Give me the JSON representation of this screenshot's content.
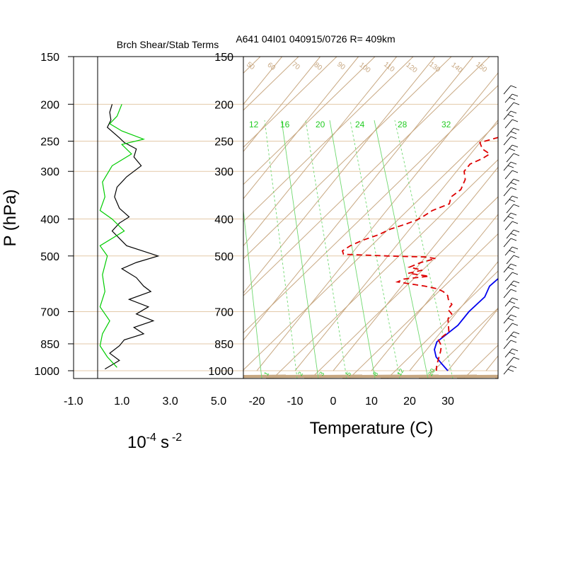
{
  "chart_data": [
    {
      "type": "line",
      "title": "Brch Shear/Stab Terms",
      "xlabel": "10",
      "xlabel_exponent": "-4",
      "xlabel_unit": "s",
      "xlabel_unit_exponent": "-2",
      "ylabel": "P (hPa)",
      "xlim": [
        -1.0,
        5.0
      ],
      "x_ticks": [
        "-1.0",
        "1.0",
        "3.0",
        "5.0"
      ],
      "y_scale": "log",
      "ylim": [
        1000,
        150
      ],
      "y_ticks": [
        "150",
        "200",
        "250",
        "300",
        "400",
        "500",
        "700",
        "850",
        "1000"
      ],
      "grid": "horizontal at pressure levels",
      "series": [
        {
          "color": "#000000",
          "points": [
            [
              0.6,
              200
            ],
            [
              0.5,
              210
            ],
            [
              0.55,
              220
            ],
            [
              0.4,
              230
            ],
            [
              0.9,
              245
            ],
            [
              1.1,
              252
            ],
            [
              1.6,
              262
            ],
            [
              1.5,
              275
            ],
            [
              1.8,
              290
            ],
            [
              1.2,
              310
            ],
            [
              0.8,
              330
            ],
            [
              0.7,
              350
            ],
            [
              0.9,
              375
            ],
            [
              1.3,
              395
            ],
            [
              0.9,
              410
            ],
            [
              0.6,
              430
            ],
            [
              1.2,
              470
            ],
            [
              2.5,
              500
            ],
            [
              1.6,
              520
            ],
            [
              1.0,
              540
            ],
            [
              1.6,
              570
            ],
            [
              1.9,
              600
            ],
            [
              2.2,
              620
            ],
            [
              1.3,
              650
            ],
            [
              2.1,
              680
            ],
            [
              1.6,
              710
            ],
            [
              2.3,
              740
            ],
            [
              1.5,
              770
            ],
            [
              1.9,
              800
            ],
            [
              1.1,
              830
            ],
            [
              0.9,
              860
            ],
            [
              0.5,
              900
            ],
            [
              0.9,
              940
            ],
            [
              0.3,
              990
            ]
          ]
        },
        {
          "color": "#00cc00",
          "points": [
            [
              1.0,
              200
            ],
            [
              0.8,
              215
            ],
            [
              0.5,
              225
            ],
            [
              1.0,
              235
            ],
            [
              1.9,
              247
            ],
            [
              1.0,
              255
            ],
            [
              1.4,
              270
            ],
            [
              0.6,
              290
            ],
            [
              0.2,
              320
            ],
            [
              0.3,
              350
            ],
            [
              0.1,
              380
            ],
            [
              0.6,
              400
            ],
            [
              1.1,
              430
            ],
            [
              0.1,
              470
            ],
            [
              0.4,
              500
            ],
            [
              0.2,
              560
            ],
            [
              0.3,
              620
            ],
            [
              0.1,
              680
            ],
            [
              0.5,
              740
            ],
            [
              0.2,
              800
            ],
            [
              0.1,
              860
            ],
            [
              0.4,
              920
            ],
            [
              0.8,
              980
            ]
          ]
        }
      ]
    },
    {
      "type": "line",
      "title": "A641 04I01 040915/0726 R= 409km",
      "xlabel": "Temperature (C)",
      "x_ticks": [
        "-20",
        "-10",
        "0",
        "10",
        "20",
        "30"
      ],
      "xlim": [
        -23,
        42
      ],
      "y_scale": "log",
      "ylim": [
        1000,
        150
      ],
      "y_ticks": [
        "150",
        "200",
        "250",
        "300",
        "400",
        "500",
        "700",
        "850",
        "1000"
      ],
      "skew": "skew-T log-P diagram",
      "background": {
        "isotherm_color": "#c8a882",
        "mixing_ratio_color": "#2ecc2e",
        "isotherm_labels": [
          "50",
          "60",
          "70",
          "80",
          "90",
          "100",
          "110",
          "120",
          "130",
          "140",
          "150"
        ],
        "mixing_ratio_top_labels": [
          "12",
          "16",
          "20",
          "24",
          "28",
          "32"
        ],
        "mixing_ratio_bottom_labels": [
          "1",
          "2",
          "3",
          "5",
          "8",
          "12",
          "20"
        ]
      },
      "series": [
        {
          "name": "temperature",
          "color": "#0000ee",
          "style": "solid",
          "points": [
            [
              0,
              195
            ],
            [
              3,
              215
            ],
            [
              5,
              235
            ],
            [
              7,
              255
            ],
            [
              8,
              275
            ],
            [
              9,
              295
            ],
            [
              12,
              320
            ],
            [
              15,
              350
            ],
            [
              16,
              380
            ],
            [
              18,
              410
            ],
            [
              21,
              440
            ],
            [
              22,
              470
            ],
            [
              21,
              500
            ],
            [
              23,
              520
            ],
            [
              24,
              560
            ],
            [
              23,
              600
            ],
            [
              24,
              640
            ],
            [
              23,
              700
            ],
            [
              23,
              760
            ],
            [
              22,
              800
            ],
            [
              21,
              840
            ],
            [
              22,
              880
            ],
            [
              24,
              920
            ],
            [
              27,
              960
            ],
            [
              30,
              1000
            ]
          ]
        },
        {
          "name": "dewpoint",
          "color": "#dd0000",
          "style": "dashed",
          "points": [
            [
              -6,
              215
            ],
            [
              -3,
              225
            ],
            [
              -4,
              240
            ],
            [
              -10,
              252
            ],
            [
              -8,
              262
            ],
            [
              -5,
              270
            ],
            [
              -6,
              278
            ],
            [
              -8,
              287
            ],
            [
              -8,
              300
            ],
            [
              -6,
              315
            ],
            [
              -5,
              335
            ],
            [
              -6,
              350
            ],
            [
              -5,
              365
            ],
            [
              -8,
              380
            ],
            [
              -9,
              392
            ],
            [
              -10,
              402
            ],
            [
              -12,
              412
            ],
            [
              -15,
              425
            ],
            [
              -17,
              440
            ],
            [
              -20,
              455
            ],
            [
              -22,
              470
            ],
            [
              -23,
              485
            ],
            [
              -22,
              495
            ],
            [
              -10,
              500
            ],
            [
              0,
              503
            ],
            [
              3,
              508
            ],
            [
              0,
              520
            ],
            [
              -2,
              535
            ],
            [
              2,
              545
            ],
            [
              -1,
              555
            ],
            [
              5,
              565
            ],
            [
              -1,
              575
            ],
            [
              -2,
              585
            ],
            [
              6,
              600
            ],
            [
              10,
              610
            ],
            [
              12,
              620
            ],
            [
              14,
              635
            ],
            [
              15,
              650
            ],
            [
              17,
              670
            ],
            [
              17,
              690
            ],
            [
              19,
              710
            ],
            [
              19,
              730
            ],
            [
              20,
              750
            ],
            [
              22,
              790
            ],
            [
              21,
              830
            ],
            [
              23,
              860
            ],
            [
              24,
              890
            ],
            [
              25,
              930
            ],
            [
              26,
              970
            ],
            [
              27,
              1000
            ]
          ]
        }
      ],
      "wind_barbs": "right-side wind barb column"
    }
  ]
}
